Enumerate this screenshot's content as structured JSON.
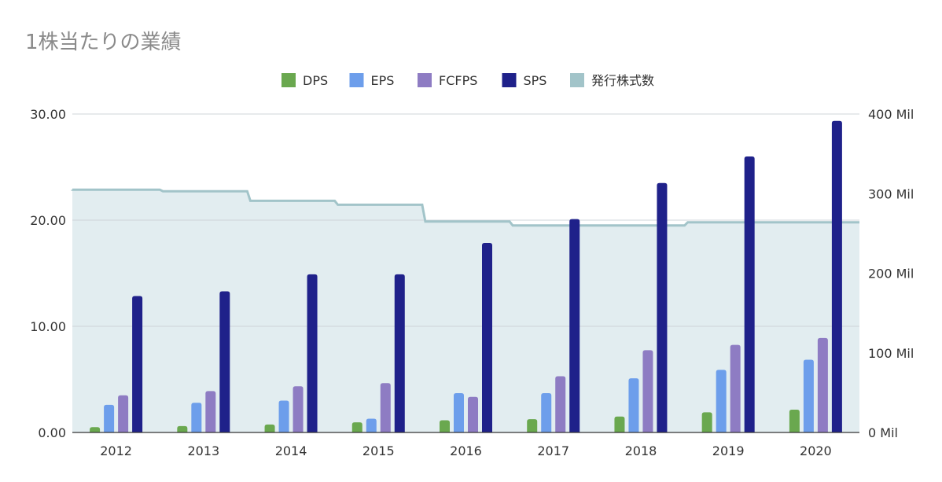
{
  "chart_data": {
    "type": "bar",
    "title": "1株当たりの業績",
    "categories": [
      "2012",
      "2013",
      "2014",
      "2015",
      "2016",
      "2017",
      "2018",
      "2019",
      "2020"
    ],
    "series": [
      {
        "name": "DPS",
        "color": "#6aa84f",
        "values": [
          0.5,
          0.6,
          0.75,
          0.95,
          1.15,
          1.25,
          1.5,
          1.9,
          2.15
        ]
      },
      {
        "name": "EPS",
        "color": "#6d9eeb",
        "values": [
          2.6,
          2.8,
          3.0,
          1.3,
          3.7,
          3.7,
          5.1,
          5.9,
          6.85
        ]
      },
      {
        "name": "FCFPS",
        "color": "#8e7cc3",
        "values": [
          3.5,
          3.9,
          4.35,
          4.65,
          3.35,
          5.3,
          7.75,
          8.25,
          8.9
        ]
      },
      {
        "name": "SPS",
        "color": "#1f218a",
        "values": [
          12.85,
          13.3,
          14.9,
          14.9,
          17.85,
          20.1,
          23.5,
          26.0,
          29.35
        ]
      }
    ],
    "area_series": {
      "name": "発行株式数",
      "color": "#a2c4c9",
      "fill": "#e2edf0",
      "axis": "right",
      "values": [
        305000000,
        303000000,
        291000000,
        286000000,
        265000000,
        260000000,
        260000000,
        264000000,
        264000000
      ]
    },
    "y_left": {
      "ylim": [
        0,
        30
      ],
      "ticks": [
        "0.00",
        "10.00",
        "20.00",
        "30.00"
      ],
      "tick_values": [
        0,
        10,
        20,
        30
      ]
    },
    "y_right": {
      "ylim": [
        0,
        400000000
      ],
      "ticks": [
        "0 Mil",
        "100 Mil",
        "200 Mil",
        "300 Mil",
        "400 Mil"
      ],
      "tick_values": [
        0,
        100000000,
        200000000,
        300000000,
        400000000
      ]
    },
    "grid": true,
    "legend_position": "top"
  }
}
